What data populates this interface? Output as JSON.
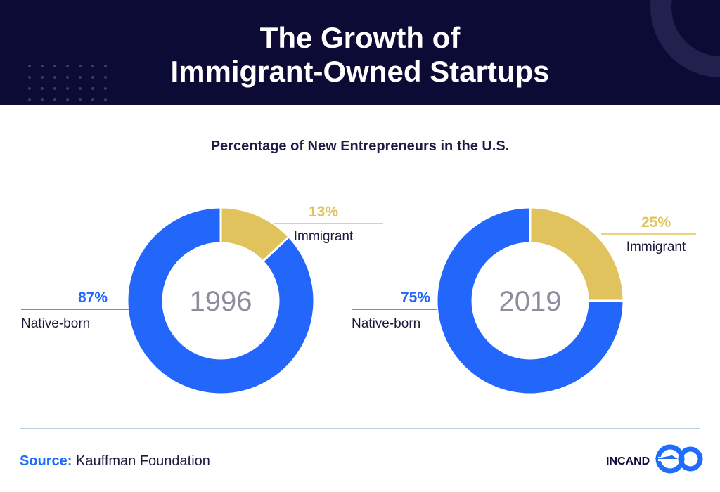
{
  "header": {
    "title_line1": "The Growth of",
    "title_line2": "Immigrant-Owned Startups"
  },
  "chart_data": [
    {
      "type": "pie",
      "style": "donut",
      "title": "Percentage of New Entrepreneurs in the U.S.",
      "center_label": "1996",
      "slices": [
        {
          "name": "Immigrant",
          "value": 13,
          "label": "13%",
          "color": "#e0c35c"
        },
        {
          "name": "Native-born",
          "value": 87,
          "label": "87%",
          "color": "#2366fa"
        }
      ]
    },
    {
      "type": "pie",
      "style": "donut",
      "title": "Percentage of New Entrepreneurs in the U.S.",
      "center_label": "2019",
      "slices": [
        {
          "name": "Immigrant",
          "value": 25,
          "label": "25%",
          "color": "#e0c35c"
        },
        {
          "name": "Native-born",
          "value": 75,
          "label": "75%",
          "color": "#2366fa"
        }
      ]
    }
  ],
  "footer": {
    "source_label": "Source:",
    "source_text": "Kauffman Foundation",
    "logo_text": "INCAND"
  },
  "colors": {
    "header_bg": "#0c0b35",
    "accent_blue": "#2366fa",
    "accent_gold": "#e0c35c",
    "year_gray": "#8f8c9e"
  }
}
